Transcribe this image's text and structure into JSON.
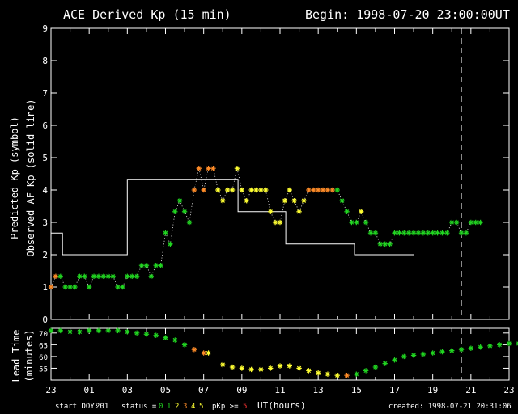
{
  "header": {
    "title": "ACE Derived Kp (15 min)",
    "begin": "Begin: 1998-07-20 23:00:00UT"
  },
  "footer": {
    "start_doy_label": "start DOY:",
    "start_doy_value": "201",
    "status_label": "status =",
    "status_codes": [
      "0",
      "1",
      "2",
      "3",
      "4",
      "5"
    ],
    "pkp_label": "pKp >=",
    "pkp_threshold": "5",
    "xlabel": "UT(hours)",
    "created": "created:  1998-07-21 20:31:06"
  },
  "colors": {
    "status": [
      "#21d521",
      "#21d521",
      "#ffff33",
      "#ff8c28",
      "#ffff33",
      "#ffff33"
    ],
    "pkp": "#ff3333",
    "axes": "#ffffff"
  },
  "chart_data": [
    {
      "type": "scatter",
      "xlabel": "",
      "ylabel": [
        "Predicted Kp (symbol)",
        "Observed AF Kp (solid line)"
      ],
      "ylim": [
        0,
        9
      ],
      "y_ticks": [
        "0",
        "1",
        "2",
        "3",
        "4",
        "5",
        "6",
        "7",
        "8",
        "9"
      ],
      "xlim": [
        0,
        24
      ],
      "x_ticks": [
        "23",
        "01",
        "03",
        "05",
        "07",
        "09",
        "11",
        "13",
        "15",
        "17",
        "19",
        "21",
        "23"
      ],
      "x_tick_positions_hours_since_start": [
        0,
        2,
        4,
        6,
        8,
        10,
        12,
        14,
        16,
        18,
        20,
        22,
        24
      ],
      "dashed_vertical_line_at_hours_since_start": 21.5,
      "series": [
        {
          "kind": "observed_af_kp_step",
          "points": [
            [
              0,
              2.67
            ],
            [
              0.6,
              2.67
            ],
            [
              0.6,
              2
            ],
            [
              4,
              2
            ],
            [
              4,
              4.33
            ],
            [
              9.8,
              4.33
            ],
            [
              9.8,
              3.33
            ],
            [
              12.3,
              3.33
            ],
            [
              12.3,
              2.33
            ],
            [
              15.9,
              2.33
            ],
            [
              15.9,
              2
            ],
            [
              19,
              2
            ]
          ]
        },
        {
          "kind": "predicted_kp_symbols",
          "points": [
            [
              0.0,
              1.0,
              3
            ],
            [
              0.25,
              1.33,
              3
            ],
            [
              0.5,
              1.33,
              1
            ],
            [
              0.75,
              1.0,
              1
            ],
            [
              1.0,
              1.0,
              1
            ],
            [
              1.25,
              1.0,
              1
            ],
            [
              1.5,
              1.33,
              1
            ],
            [
              1.75,
              1.33,
              1
            ],
            [
              2.0,
              1.0,
              1
            ],
            [
              2.25,
              1.33,
              1
            ],
            [
              2.5,
              1.33,
              1
            ],
            [
              2.75,
              1.33,
              1
            ],
            [
              3.0,
              1.33,
              1
            ],
            [
              3.25,
              1.33,
              1
            ],
            [
              3.5,
              1.0,
              1
            ],
            [
              3.75,
              1.0,
              1
            ],
            [
              4.0,
              1.33,
              1
            ],
            [
              4.25,
              1.33,
              1
            ],
            [
              4.5,
              1.33,
              1
            ],
            [
              4.75,
              1.67,
              1
            ],
            [
              5.0,
              1.67,
              1
            ],
            [
              5.25,
              1.33,
              1
            ],
            [
              5.5,
              1.67,
              1
            ],
            [
              5.75,
              1.67,
              1
            ],
            [
              6.0,
              2.67,
              1
            ],
            [
              6.25,
              2.33,
              1
            ],
            [
              6.5,
              3.33,
              1
            ],
            [
              6.75,
              3.67,
              1
            ],
            [
              7.0,
              3.33,
              1
            ],
            [
              7.25,
              3.0,
              1
            ],
            [
              7.5,
              4.0,
              3
            ],
            [
              7.75,
              4.67,
              3
            ],
            [
              8.0,
              4.0,
              3
            ],
            [
              8.25,
              4.67,
              3
            ],
            [
              8.5,
              4.67,
              3
            ],
            [
              8.75,
              4.0,
              2
            ],
            [
              9.0,
              3.67,
              2
            ],
            [
              9.25,
              4.0,
              2
            ],
            [
              9.5,
              4.0,
              2
            ],
            [
              9.75,
              4.67,
              2
            ],
            [
              10.0,
              4.0,
              2
            ],
            [
              10.25,
              3.67,
              2
            ],
            [
              10.5,
              4.0,
              2
            ],
            [
              10.75,
              4.0,
              2
            ],
            [
              11.0,
              4.0,
              2
            ],
            [
              11.25,
              4.0,
              2
            ],
            [
              11.5,
              3.33,
              2
            ],
            [
              11.75,
              3.0,
              2
            ],
            [
              12.0,
              3.0,
              2
            ],
            [
              12.25,
              3.67,
              2
            ],
            [
              12.5,
              4.0,
              2
            ],
            [
              12.75,
              3.67,
              2
            ],
            [
              13.0,
              3.33,
              2
            ],
            [
              13.25,
              3.67,
              2
            ],
            [
              13.5,
              4.0,
              3
            ],
            [
              13.75,
              4.0,
              3
            ],
            [
              14.0,
              4.0,
              3
            ],
            [
              14.25,
              4.0,
              3
            ],
            [
              14.5,
              4.0,
              3
            ],
            [
              14.75,
              4.0,
              3
            ],
            [
              15.0,
              4.0,
              1
            ],
            [
              15.25,
              3.67,
              1
            ],
            [
              15.5,
              3.33,
              1
            ],
            [
              15.75,
              3.0,
              1
            ],
            [
              16.0,
              3.0,
              1
            ],
            [
              16.25,
              3.33,
              2
            ],
            [
              16.5,
              3.0,
              1
            ],
            [
              16.75,
              2.67,
              1
            ],
            [
              17.0,
              2.67,
              1
            ],
            [
              17.25,
              2.33,
              1
            ],
            [
              17.5,
              2.33,
              1
            ],
            [
              17.75,
              2.33,
              1
            ],
            [
              18.0,
              2.67,
              1
            ],
            [
              18.25,
              2.67,
              1
            ],
            [
              18.5,
              2.67,
              1
            ],
            [
              18.75,
              2.67,
              1
            ],
            [
              19.0,
              2.67,
              1
            ],
            [
              19.25,
              2.67,
              1
            ],
            [
              19.5,
              2.67,
              1
            ],
            [
              19.75,
              2.67,
              1
            ],
            [
              20.0,
              2.67,
              1
            ],
            [
              20.25,
              2.67,
              1
            ],
            [
              20.5,
              2.67,
              1
            ],
            [
              20.75,
              2.67,
              1
            ],
            [
              21.0,
              3.0,
              1
            ],
            [
              21.25,
              3.0,
              1
            ],
            [
              21.5,
              2.67,
              1
            ],
            [
              21.75,
              2.67,
              1
            ],
            [
              22.0,
              3.0,
              1
            ],
            [
              22.25,
              3.0,
              1
            ],
            [
              22.5,
              3.0,
              1
            ]
          ]
        }
      ]
    },
    {
      "type": "scatter",
      "ylabel": [
        "Lead Time",
        "(minutes)"
      ],
      "ylim": [
        50,
        72
      ],
      "y_ticks": [
        "55",
        "60",
        "65",
        "70"
      ],
      "xlim": [
        0,
        24
      ],
      "x_ticks": [
        "23",
        "01",
        "03",
        "05",
        "07",
        "09",
        "11",
        "13",
        "15",
        "17",
        "19",
        "21",
        "23"
      ],
      "dashed_vertical_line_at_hours_since_start": 21.5,
      "series": [
        {
          "kind": "lead_time_symbols",
          "points": [
            [
              0.0,
              71,
              1
            ],
            [
              0.5,
              71,
              1
            ],
            [
              1.0,
              70.5,
              1
            ],
            [
              1.5,
              70.5,
              1
            ],
            [
              2.0,
              71,
              1
            ],
            [
              2.5,
              71,
              1
            ],
            [
              3.0,
              71,
              1
            ],
            [
              3.5,
              71,
              1
            ],
            [
              4.0,
              70.5,
              1
            ],
            [
              4.5,
              70,
              1
            ],
            [
              5.0,
              69.5,
              1
            ],
            [
              5.5,
              69,
              1
            ],
            [
              6.0,
              68,
              1
            ],
            [
              6.5,
              67,
              1
            ],
            [
              7.0,
              65,
              1
            ],
            [
              7.5,
              63,
              3
            ],
            [
              8.0,
              61.5,
              3
            ],
            [
              8.25,
              61.5,
              2
            ],
            [
              9.0,
              56.5,
              2
            ],
            [
              9.5,
              55.5,
              2
            ],
            [
              10.0,
              55,
              2
            ],
            [
              10.5,
              54.5,
              2
            ],
            [
              11.0,
              54.5,
              2
            ],
            [
              11.5,
              55,
              2
            ],
            [
              12.0,
              56,
              2
            ],
            [
              12.5,
              56,
              2
            ],
            [
              13.0,
              55,
              2
            ],
            [
              13.5,
              54,
              2
            ],
            [
              14.0,
              53,
              2
            ],
            [
              14.5,
              52.5,
              2
            ],
            [
              15.0,
              52,
              2
            ],
            [
              15.5,
              52,
              3
            ],
            [
              16.0,
              52.5,
              1
            ],
            [
              16.5,
              54,
              1
            ],
            [
              17.0,
              55.5,
              1
            ],
            [
              17.5,
              57,
              1
            ],
            [
              18.0,
              58.5,
              1
            ],
            [
              18.5,
              60,
              1
            ],
            [
              19.0,
              60.5,
              1
            ],
            [
              19.5,
              61,
              1
            ],
            [
              20.0,
              61.5,
              1
            ],
            [
              20.5,
              62,
              1
            ],
            [
              21.0,
              62.5,
              1
            ],
            [
              21.5,
              63,
              1
            ],
            [
              22.0,
              63.5,
              1
            ],
            [
              22.5,
              64,
              1
            ],
            [
              23.0,
              64.5,
              1
            ],
            [
              23.5,
              65,
              1
            ],
            [
              24.0,
              65.5,
              1
            ],
            [
              24.5,
              65.5,
              1
            ],
            [
              25.0,
              65.5,
              1
            ]
          ]
        }
      ]
    }
  ]
}
